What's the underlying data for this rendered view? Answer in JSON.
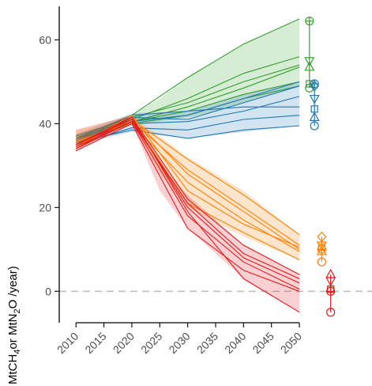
{
  "chart_data": {
    "type": "line",
    "title": "",
    "xlabel": "",
    "ylabel": {
      "parts": [
        {
          "t": "MtCH",
          "sub": false
        },
        {
          "t": "4",
          "sub": true
        },
        {
          "t": "or MtN",
          "sub": false
        },
        {
          "t": "2",
          "sub": true
        },
        {
          "t": "O /year)",
          "sub": false
        }
      ]
    },
    "xlim": [
      2007,
      2063
    ],
    "ylim": [
      -7.5,
      68
    ],
    "xticks": [
      2010,
      2015,
      2020,
      2025,
      2030,
      2035,
      2040,
      2045,
      2050
    ],
    "yticks": [
      0,
      20,
      40,
      60
    ],
    "reference_line": {
      "y": 0,
      "style": "dashed",
      "color": "#bfbfbf"
    },
    "grid": false,
    "legend": "none",
    "series_groups": [
      {
        "color": "#33a02c",
        "band": {
          "x": [
            2010,
            2015,
            2020,
            2025,
            2030,
            2035,
            2040,
            2045,
            2050
          ],
          "lower": [
            35.5,
            38.0,
            39.5,
            40.5,
            41.5,
            43.0,
            45.0,
            47.0,
            49.0
          ],
          "upper": [
            37.5,
            39.5,
            42.0,
            46.0,
            51.0,
            55.0,
            59.0,
            62.0,
            65.0
          ]
        },
        "lines": [
          {
            "x": [
              2010,
              2020,
              2030,
              2040,
              2050
            ],
            "y": [
              36.0,
              42.0,
              51.0,
              59.0,
              65.0
            ]
          },
          {
            "x": [
              2010,
              2020,
              2030,
              2040,
              2050
            ],
            "y": [
              36.5,
              41.0,
              46.0,
              52.0,
              56.0
            ]
          },
          {
            "x": [
              2010,
              2020,
              2030,
              2040,
              2050
            ],
            "y": [
              35.5,
              40.5,
              44.0,
              48.5,
              53.5
            ]
          },
          {
            "x": [
              2010,
              2020,
              2030,
              2040,
              2050
            ],
            "y": [
              37.0,
              41.5,
              45.0,
              50.0,
              54.0
            ]
          },
          {
            "x": [
              2010,
              2020,
              2030,
              2040,
              2050
            ],
            "y": [
              36.0,
              40.0,
              42.0,
              46.0,
              49.0
            ]
          },
          {
            "x": [
              2010,
              2020,
              2030,
              2040,
              2050
            ],
            "y": [
              36.5,
              40.5,
              43.0,
              47.0,
              50.0
            ]
          }
        ],
        "markers": [
          {
            "shape": "circle-plus",
            "y": 64.5
          },
          {
            "shape": "triangle-down",
            "y": 55.0
          },
          {
            "shape": "triangle-up",
            "y": 53.5
          },
          {
            "shape": "square",
            "y": 49.5
          },
          {
            "shape": "circle",
            "y": 48.5
          }
        ]
      },
      {
        "color": "#1f78b4",
        "band": {
          "x": [
            2010,
            2020,
            2030,
            2040,
            2050
          ],
          "lower": [
            35.0,
            38.0,
            36.5,
            38.0,
            39.5
          ],
          "upper": [
            37.5,
            42.5,
            43.0,
            47.0,
            50.0
          ]
        },
        "lines": [
          {
            "x": [
              2010,
              2020,
              2030,
              2040,
              2050
            ],
            "y": [
              36.0,
              41.5,
              41.0,
              45.0,
              49.0
            ]
          },
          {
            "x": [
              2010,
              2020,
              2030,
              2040,
              2050
            ],
            "y": [
              35.5,
              40.0,
              40.5,
              43.0,
              46.5
            ]
          },
          {
            "x": [
              2010,
              2020,
              2030,
              2040,
              2050
            ],
            "y": [
              36.5,
              42.0,
              43.0,
              44.0,
              44.0
            ]
          },
          {
            "x": [
              2010,
              2020,
              2030,
              2040,
              2050
            ],
            "y": [
              35.0,
              39.0,
              38.5,
              41.0,
              42.0
            ]
          },
          {
            "x": [
              2010,
              2020,
              2030,
              2040,
              2050
            ],
            "y": [
              35.5,
              38.5,
              36.5,
              38.5,
              39.5
            ]
          },
          {
            "x": [
              2010,
              2020,
              2030,
              2040,
              2050
            ],
            "y": [
              36.0,
              40.5,
              42.0,
              46.0,
              50.0
            ]
          }
        ],
        "markers": [
          {
            "shape": "circle-plus",
            "y": 49.5
          },
          {
            "shape": "diamond",
            "y": 49.0
          },
          {
            "shape": "triangle-down",
            "y": 46.0
          },
          {
            "shape": "square",
            "y": 43.5
          },
          {
            "shape": "triangle-up",
            "y": 41.5
          },
          {
            "shape": "circle",
            "y": 39.5
          }
        ]
      },
      {
        "color": "#ff7f00",
        "band": {
          "x": [
            2010,
            2020,
            2025,
            2030,
            2040,
            2050
          ],
          "lower": [
            34.0,
            40.0,
            28.0,
            20.0,
            13.0,
            7.5
          ],
          "upper": [
            38.5,
            42.0,
            37.0,
            32.0,
            24.0,
            13.5
          ]
        },
        "lines": [
          {
            "x": [
              2010,
              2020,
              2030,
              2040,
              2050
            ],
            "y": [
              35.0,
              41.0,
              31.5,
              23.0,
              13.5
            ]
          },
          {
            "x": [
              2010,
              2020,
              2030,
              2040,
              2050
            ],
            "y": [
              35.5,
              40.5,
              29.0,
              20.0,
              11.0
            ]
          },
          {
            "x": [
              2010,
              2020,
              2030,
              2040,
              2050
            ],
            "y": [
              34.5,
              41.5,
              28.0,
              19.0,
              10.0
            ]
          },
          {
            "x": [
              2010,
              2020,
              2030,
              2040,
              2050
            ],
            "y": [
              36.0,
              40.0,
              26.0,
              17.0,
              9.5
            ]
          },
          {
            "x": [
              2010,
              2020,
              2030,
              2040,
              2050
            ],
            "y": [
              35.0,
              41.0,
              21.0,
              14.0,
              7.5
            ]
          },
          {
            "x": [
              2010,
              2020,
              2030,
              2040,
              2050
            ],
            "y": [
              34.5,
              42.0,
              24.0,
              16.0,
              10.5
            ]
          }
        ],
        "markers": [
          {
            "shape": "diamond",
            "y": 13.0
          },
          {
            "shape": "triangle-down",
            "y": 11.0
          },
          {
            "shape": "square",
            "y": 10.5
          },
          {
            "shape": "circle-plus",
            "y": 10.0
          },
          {
            "shape": "triangle-up",
            "y": 9.5
          },
          {
            "shape": "circle",
            "y": 7.0
          }
        ]
      },
      {
        "color": "#e31a1c",
        "band": {
          "x": [
            2010,
            2020,
            2025,
            2030,
            2040,
            2050
          ],
          "lower": [
            33.5,
            40.0,
            24.0,
            15.0,
            3.0,
            -5.0
          ],
          "upper": [
            38.5,
            42.0,
            30.0,
            23.0,
            11.0,
            4.0
          ]
        },
        "lines": [
          {
            "x": [
              2010,
              2020,
              2030,
              2040,
              2050
            ],
            "y": [
              34.0,
              41.5,
              22.0,
              11.0,
              4.0
            ]
          },
          {
            "x": [
              2010,
              2020,
              2030,
              2040,
              2050
            ],
            "y": [
              35.0,
              41.0,
              20.0,
              8.0,
              2.0
            ]
          },
          {
            "x": [
              2010,
              2020,
              2030,
              2040,
              2050
            ],
            "y": [
              34.5,
              40.5,
              18.0,
              7.0,
              0.5
            ]
          },
          {
            "x": [
              2010,
              2020,
              2030,
              2040,
              2050
            ],
            "y": [
              33.5,
              40.0,
              15.0,
              5.0,
              0.0
            ]
          },
          {
            "x": [
              2010,
              2020,
              2030,
              2040,
              2050
            ],
            "y": [
              35.0,
              41.5,
              19.0,
              3.0,
              -5.0
            ]
          },
          {
            "x": [
              2010,
              2020,
              2030,
              2040,
              2050
            ],
            "y": [
              34.0,
              40.5,
              21.0,
              9.0,
              3.0
            ]
          }
        ],
        "markers": [
          {
            "shape": "triangle-up",
            "y": 4.0
          },
          {
            "shape": "triangle-down",
            "y": 2.5
          },
          {
            "shape": "square",
            "y": 0.5
          },
          {
            "shape": "circle-plus",
            "y": 0.0
          },
          {
            "shape": "circle",
            "y": -5.0
          }
        ]
      }
    ]
  }
}
